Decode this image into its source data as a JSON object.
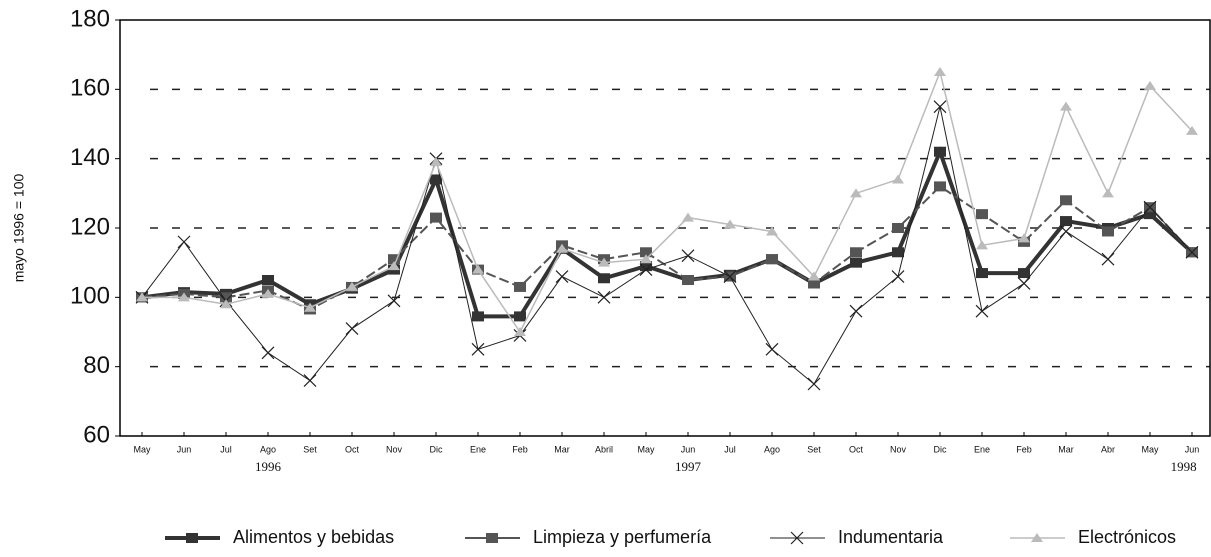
{
  "chart_data": {
    "type": "line",
    "y_label": "mayo 1996 = 100",
    "categories": [
      "May",
      "Jun",
      "Jul",
      "Ago",
      "Set",
      "Oct",
      "Nov",
      "Dic",
      "Ene",
      "Feb",
      "Mar",
      "Abril",
      "May",
      "Jun",
      "Jul",
      "Ago",
      "Set",
      "Oct",
      "Nov",
      "Dic",
      "Ene",
      "Feb",
      "Mar",
      "Abr",
      "May",
      "Jun"
    ],
    "year_labels": [
      "1996",
      "1997",
      "1998"
    ],
    "ylim": [
      60,
      180
    ],
    "yticks": [
      60,
      80,
      100,
      120,
      140,
      160,
      180
    ],
    "grid": true,
    "series": [
      {
        "name": "Alimentos y bebidas",
        "color": "#333333",
        "marker": "square",
        "width": 4,
        "values": [
          100,
          101.5,
          101,
          105,
          98,
          102.5,
          108,
          134,
          94.5,
          94.5,
          114,
          105.5,
          109,
          105,
          106.5,
          111,
          104,
          110,
          113,
          142,
          107,
          107,
          122,
          120,
          124,
          113
        ]
      },
      {
        "name": "Limpieza y perfumería",
        "color": "#555555",
        "marker": "square",
        "width": 2,
        "values": [
          100,
          101,
          100,
          102,
          96.5,
          103,
          111,
          123,
          108,
          103,
          115,
          111,
          113,
          105,
          106,
          111,
          104,
          113,
          120,
          132,
          124,
          116,
          128,
          119,
          126,
          113
        ]
      },
      {
        "name": "Indumentaria",
        "color": "#222222",
        "marker": "x",
        "width": 1,
        "values": [
          100,
          116,
          99,
          84,
          76,
          91,
          99,
          140,
          85,
          89,
          106,
          100,
          108,
          112,
          106,
          85,
          75,
          96,
          106,
          155,
          96,
          104,
          119,
          111,
          126,
          113
        ]
      },
      {
        "name": "Electrónicos",
        "color": "#bbbbbb",
        "marker": "triangle",
        "width": 1.5,
        "values": [
          100,
          100,
          98,
          101,
          97,
          103,
          109,
          139,
          108,
          90,
          114,
          110,
          111,
          123,
          121,
          119,
          106,
          130,
          134,
          165,
          115,
          117,
          155,
          130,
          161,
          148
        ]
      }
    ]
  }
}
